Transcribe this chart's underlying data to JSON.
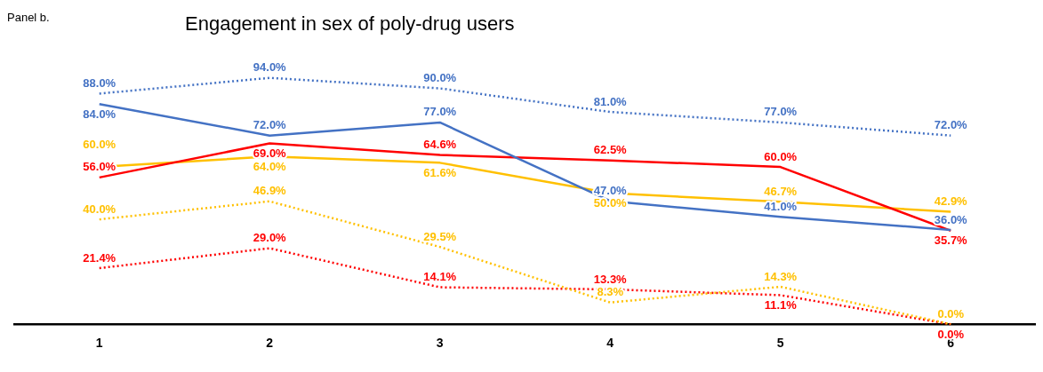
{
  "chart_data": {
    "type": "line",
    "title": "Engagement in sex of poly-drug users",
    "annotations": [
      "Panel b."
    ],
    "categories": [
      "1",
      "2",
      "3",
      "4",
      "5",
      "6"
    ],
    "grid": false,
    "legend": false,
    "marker": "none",
    "series": [
      {
        "color": "#4472c4",
        "line_style": "dotted",
        "values": [
          88.0,
          94.0,
          90.0,
          81.0,
          77.0,
          72.0
        ],
        "value_labels": [
          "88.0%",
          "94.0%",
          "90.0%",
          "81.0%",
          "77.0%",
          "72.0%"
        ]
      },
      {
        "color": "#4472c4",
        "line_style": "solid",
        "values": [
          84.0,
          72.0,
          77.0,
          47.0,
          41.0,
          36.0
        ],
        "value_labels": [
          "84.0%",
          "72.0%",
          "77.0%",
          "47.0%",
          "41.0%",
          "36.0%"
        ]
      },
      {
        "color": "#ff0000",
        "line_style": "solid",
        "values": [
          56.0,
          69.0,
          64.6,
          62.5,
          60.0,
          35.7
        ],
        "value_labels": [
          "56.0%",
          "69.0%",
          "64.6%",
          "62.5%",
          "60.0%",
          "35.7%"
        ]
      },
      {
        "color": "#ffc000",
        "line_style": "solid",
        "values": [
          60.0,
          64.0,
          61.6,
          50.0,
          46.7,
          42.9
        ],
        "value_labels": [
          "60.0%",
          "64.0%",
          "61.6%",
          "50.0%",
          "46.7%",
          "42.9%"
        ]
      },
      {
        "color": "#ffc000",
        "line_style": "dotted",
        "values": [
          40.0,
          46.9,
          29.5,
          8.3,
          14.3,
          0.0
        ],
        "value_labels": [
          "40.0%",
          "46.9%",
          "29.5%",
          "8.3%",
          "14.3%",
          "0.0%"
        ]
      },
      {
        "color": "#ff0000",
        "line_style": "dotted",
        "values": [
          21.4,
          29.0,
          14.1,
          13.3,
          11.1,
          0.0
        ],
        "value_labels": [
          "21.4%",
          "29.0%",
          "14.1%",
          "13.3%",
          "11.1%",
          "0.0%"
        ]
      }
    ]
  }
}
